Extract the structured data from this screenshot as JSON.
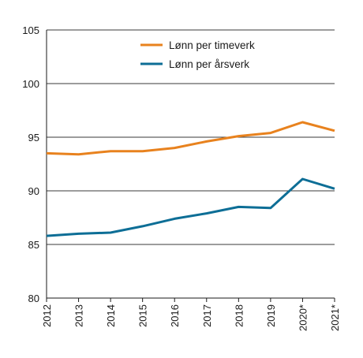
{
  "chart_data": {
    "type": "line",
    "title": "",
    "xlabel": "",
    "ylabel": "",
    "categories": [
      "2012",
      "2013",
      "2014",
      "2015",
      "2016",
      "2017",
      "2018",
      "2019",
      "2020*",
      "2021*"
    ],
    "ylim": [
      80,
      105
    ],
    "yticks": [
      80,
      85,
      90,
      95,
      100,
      105
    ],
    "grid": "horizontal",
    "legend_position": "top-center",
    "series": [
      {
        "name": "Lønn per timeverk",
        "color": "#e8821e",
        "values": [
          93.5,
          93.4,
          93.7,
          93.7,
          94.0,
          94.6,
          95.1,
          95.4,
          96.4,
          95.6
        ]
      },
      {
        "name": "Lønn per årsverk",
        "color": "#0d6e96",
        "values": [
          85.8,
          86.0,
          86.1,
          86.7,
          87.4,
          87.9,
          88.5,
          88.4,
          91.1,
          90.2
        ]
      }
    ]
  }
}
